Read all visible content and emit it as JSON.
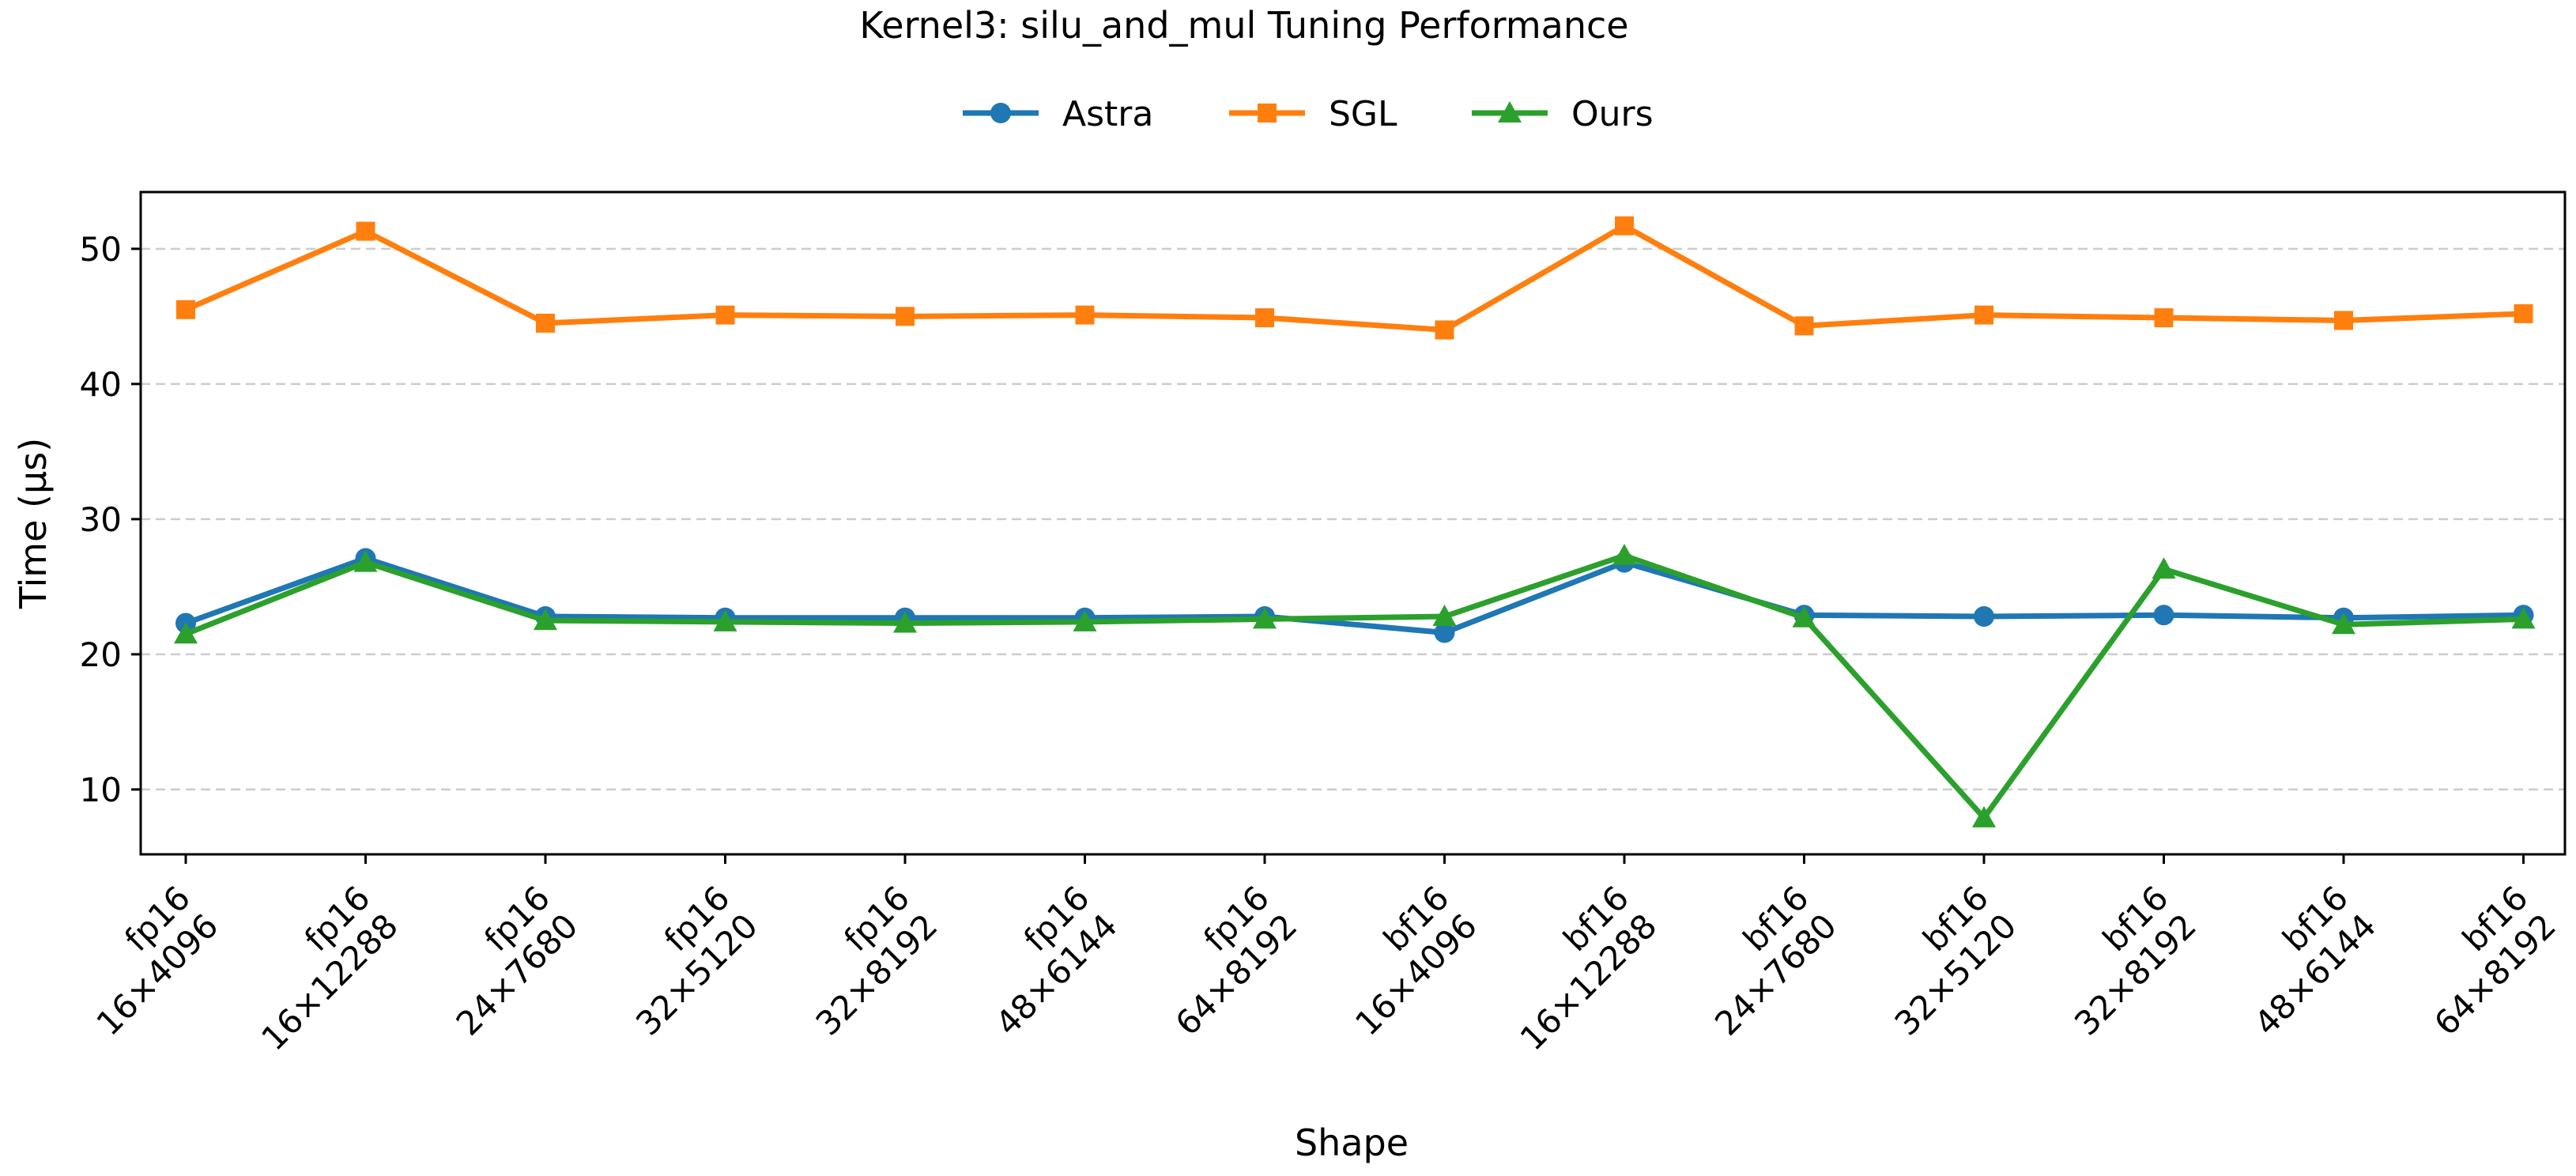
{
  "chart_data": {
    "type": "line",
    "title": "Kernel3: silu_and_mul Tuning Performance",
    "xlabel": "Shape",
    "ylabel": "Time (µs)",
    "ylim": [
      5.2,
      54.2
    ],
    "yticks": [
      10,
      20,
      30,
      40,
      50
    ],
    "grid": "horizontal dashed",
    "legend_position": "top-center",
    "categories": [
      [
        "fp16",
        "16×4096"
      ],
      [
        "fp16",
        "16×12288"
      ],
      [
        "fp16",
        "24×7680"
      ],
      [
        "fp16",
        "32×5120"
      ],
      [
        "fp16",
        "32×8192"
      ],
      [
        "fp16",
        "48×6144"
      ],
      [
        "fp16",
        "64×8192"
      ],
      [
        "bf16",
        "16×4096"
      ],
      [
        "bf16",
        "16×12288"
      ],
      [
        "bf16",
        "24×7680"
      ],
      [
        "bf16",
        "32×5120"
      ],
      [
        "bf16",
        "32×8192"
      ],
      [
        "bf16",
        "48×6144"
      ],
      [
        "bf16",
        "64×8192"
      ]
    ],
    "series": [
      {
        "name": "Astra",
        "color": "#1f77b4",
        "marker": "circle",
        "values": [
          22.3,
          27.1,
          22.8,
          22.7,
          22.7,
          22.7,
          22.8,
          21.6,
          26.8,
          22.9,
          22.8,
          22.9,
          22.7,
          22.9
        ]
      },
      {
        "name": "SGL",
        "color": "#ff7f0e",
        "marker": "square",
        "values": [
          45.5,
          51.3,
          44.5,
          45.1,
          45.0,
          45.1,
          44.9,
          44.0,
          51.7,
          44.3,
          45.1,
          44.9,
          44.7,
          45.2
        ]
      },
      {
        "name": "Ours",
        "color": "#2ca02c",
        "marker": "triangle",
        "values": [
          21.5,
          26.8,
          22.5,
          22.4,
          22.3,
          22.4,
          22.6,
          22.8,
          27.3,
          22.7,
          7.9,
          26.3,
          22.2,
          22.6
        ]
      }
    ]
  }
}
